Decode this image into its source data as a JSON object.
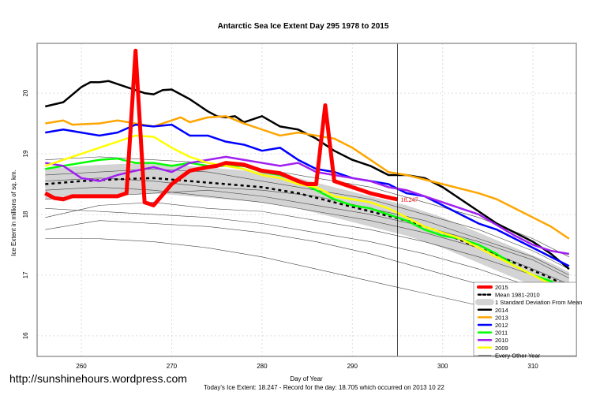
{
  "chart_data": {
    "type": "line",
    "title": "Antarctic Sea Ice Extent Day 295 1978 to 2015",
    "xlabel": "Day of Year",
    "ylabel": "Ice Extent in millions of sq. km.",
    "xlim": [
      255.1,
      314.8
    ],
    "ylim": [
      15.66,
      20.82
    ],
    "xticks": [
      260,
      270,
      280,
      290,
      300,
      310
    ],
    "yticks": [
      16,
      17,
      18,
      19,
      20
    ],
    "grid": true,
    "current_day": 295,
    "current_value_label": "18.247",
    "legend_position": "bottom-right",
    "legend": [
      "2015",
      "Mean 1981-2010",
      "1 Standard Deviation From Mean",
      "2014",
      "2013",
      "2012",
      "2011",
      "2010",
      "2009",
      "Every Other Year"
    ],
    "mean": {
      "name": "Mean 1981-2010",
      "x": [
        256,
        260,
        264,
        268,
        272,
        276,
        280,
        284,
        288,
        292,
        296,
        300,
        304,
        308,
        312,
        314
      ],
      "y": [
        18.5,
        18.55,
        18.58,
        18.6,
        18.55,
        18.5,
        18.45,
        18.35,
        18.2,
        18.05,
        17.9,
        17.7,
        17.45,
        17.2,
        16.95,
        16.8
      ],
      "sd": 0.25
    },
    "series": [
      {
        "name": "2014",
        "color": "#000000",
        "x": [
          256,
          258,
          260,
          261,
          262,
          263,
          265,
          267,
          268,
          269,
          270,
          272,
          274,
          275,
          276,
          277,
          278,
          280,
          282,
          284,
          286,
          288,
          290,
          292,
          294,
          296,
          298,
          300,
          302,
          304,
          306,
          308,
          310,
          312,
          314
        ],
        "y": [
          19.78,
          19.85,
          20.1,
          20.18,
          20.18,
          20.2,
          20.1,
          20.0,
          19.98,
          20.05,
          20.06,
          19.9,
          19.7,
          19.62,
          19.6,
          19.62,
          19.52,
          19.62,
          19.45,
          19.4,
          19.25,
          19.05,
          18.9,
          18.8,
          18.65,
          18.65,
          18.6,
          18.45,
          18.25,
          18.05,
          17.85,
          17.7,
          17.55,
          17.35,
          17.1
        ]
      },
      {
        "name": "2013",
        "color": "#ffa500",
        "x": [
          256,
          258,
          259,
          262,
          264,
          266,
          268,
          270,
          271,
          272,
          274,
          276,
          278,
          280,
          282,
          284,
          286,
          288,
          290,
          292,
          294,
          296,
          300,
          304,
          306,
          308,
          310,
          312,
          314
        ],
        "y": [
          19.5,
          19.55,
          19.48,
          19.5,
          19.55,
          19.5,
          19.45,
          19.55,
          19.6,
          19.52,
          19.6,
          19.62,
          19.5,
          19.4,
          19.3,
          19.35,
          19.3,
          19.25,
          19.1,
          18.9,
          18.7,
          18.65,
          18.5,
          18.35,
          18.25,
          18.1,
          17.95,
          17.8,
          17.6
        ]
      },
      {
        "name": "2012",
        "color": "#0000ff",
        "x": [
          256,
          258,
          260,
          262,
          264,
          266,
          268,
          270,
          272,
          274,
          276,
          278,
          280,
          282,
          284,
          286,
          288,
          290,
          292,
          294,
          296,
          298,
          300,
          302,
          304,
          306,
          308,
          310,
          312,
          314
        ],
        "y": [
          19.35,
          19.4,
          19.35,
          19.3,
          19.35,
          19.48,
          19.45,
          19.48,
          19.3,
          19.3,
          19.2,
          19.15,
          19.05,
          19.1,
          18.9,
          18.75,
          18.7,
          18.6,
          18.55,
          18.5,
          18.35,
          18.3,
          18.15,
          18.0,
          17.85,
          17.75,
          17.6,
          17.45,
          17.3,
          17.15
        ]
      },
      {
        "name": "2011",
        "color": "#00ff00",
        "x": [
          256,
          258,
          260,
          262,
          264,
          266,
          268,
          270,
          272,
          274,
          276,
          278,
          280,
          282,
          284,
          286,
          288,
          290,
          292,
          294,
          296,
          298,
          300,
          302,
          304,
          306,
          308,
          310,
          312,
          314
        ],
        "y": [
          18.75,
          18.8,
          18.85,
          18.9,
          18.92,
          18.85,
          18.85,
          18.8,
          18.85,
          18.8,
          18.8,
          18.8,
          18.7,
          18.65,
          18.55,
          18.4,
          18.25,
          18.15,
          18.1,
          18.0,
          17.9,
          17.75,
          17.65,
          17.6,
          17.5,
          17.35,
          17.15,
          17.0,
          16.9,
          16.7
        ]
      },
      {
        "name": "2010",
        "color": "#a020f0",
        "x": [
          256,
          258,
          260,
          262,
          264,
          266,
          268,
          270,
          272,
          274,
          276,
          278,
          280,
          282,
          284,
          286,
          288,
          290,
          292,
          294,
          296,
          300,
          304,
          308,
          310,
          312,
          314
        ],
        "y": [
          18.85,
          18.8,
          18.6,
          18.55,
          18.65,
          18.72,
          18.78,
          18.7,
          18.85,
          18.9,
          18.95,
          18.9,
          18.85,
          18.8,
          18.85,
          18.7,
          18.65,
          18.6,
          18.55,
          18.45,
          18.4,
          18.2,
          18.0,
          17.65,
          17.5,
          17.4,
          17.35
        ]
      },
      {
        "name": "2009",
        "color": "#ffff00",
        "x": [
          256,
          258,
          260,
          262,
          264,
          266,
          268,
          270,
          272,
          274,
          276,
          278,
          280,
          282,
          284,
          286,
          288,
          290,
          292,
          294,
          296,
          298,
          300,
          302,
          304,
          306,
          308,
          310,
          312,
          314
        ],
        "y": [
          18.8,
          18.9,
          19.0,
          19.1,
          19.2,
          19.3,
          19.28,
          19.1,
          18.95,
          18.85,
          18.8,
          18.75,
          18.65,
          18.6,
          18.5,
          18.45,
          18.3,
          18.25,
          18.2,
          18.1,
          17.95,
          17.8,
          17.7,
          17.6,
          17.45,
          17.3,
          17.15,
          17.0,
          16.85,
          16.65
        ]
      },
      {
        "name": "2015",
        "color": "#ff0000",
        "x": [
          256,
          257,
          258,
          259,
          260,
          262,
          264,
          265,
          266,
          267,
          268,
          270,
          272,
          274,
          275,
          276,
          278,
          280,
          282,
          284,
          285,
          286,
          287,
          288,
          290,
          292,
          294,
          295
        ],
        "y": [
          18.35,
          18.27,
          18.25,
          18.3,
          18.3,
          18.3,
          18.3,
          18.35,
          20.7,
          18.2,
          18.15,
          18.5,
          18.72,
          18.78,
          18.8,
          18.85,
          18.82,
          18.72,
          18.68,
          18.55,
          18.5,
          18.5,
          19.8,
          18.55,
          18.45,
          18.35,
          18.28,
          18.247
        ]
      }
    ],
    "other_years": {
      "x": [
        256,
        262,
        268,
        274,
        280,
        286,
        292,
        298,
        304,
        310,
        314
      ],
      "y": [
        [
          17.75,
          17.9,
          17.85,
          17.8,
          17.7,
          17.55,
          17.35,
          17.1,
          16.85,
          16.55,
          16.35
        ],
        [
          18.1,
          18.05,
          18.0,
          17.95,
          17.85,
          17.7,
          17.55,
          17.35,
          17.1,
          16.8,
          16.5
        ],
        [
          18.4,
          18.45,
          18.4,
          18.3,
          18.2,
          18.05,
          17.9,
          17.7,
          17.45,
          17.1,
          16.85
        ],
        [
          18.65,
          18.7,
          18.75,
          18.7,
          18.55,
          18.4,
          18.25,
          18.0,
          17.75,
          17.4,
          17.1
        ],
        [
          18.9,
          18.95,
          18.9,
          18.85,
          18.75,
          18.6,
          18.45,
          18.2,
          17.95,
          17.6,
          17.3
        ],
        [
          18.25,
          18.3,
          18.35,
          18.4,
          18.3,
          18.15,
          18.0,
          17.8,
          17.55,
          17.25,
          16.95
        ],
        [
          17.95,
          18.15,
          18.2,
          18.1,
          18.05,
          17.9,
          17.75,
          17.55,
          17.3,
          17.0,
          16.7
        ],
        [
          18.55,
          18.6,
          18.55,
          18.45,
          18.4,
          18.3,
          18.1,
          17.9,
          17.6,
          17.3,
          17.0
        ],
        [
          17.6,
          17.6,
          17.55,
          17.45,
          17.3,
          17.1,
          16.9,
          16.7,
          16.5,
          16.2,
          15.9
        ]
      ]
    }
  },
  "footer": {
    "site": "http://sunshinehours.wordpress.com",
    "summary": "Today's Ice Extent: 18.247  - Record for the day: 18.705 which occurred on 2013 10 22"
  }
}
